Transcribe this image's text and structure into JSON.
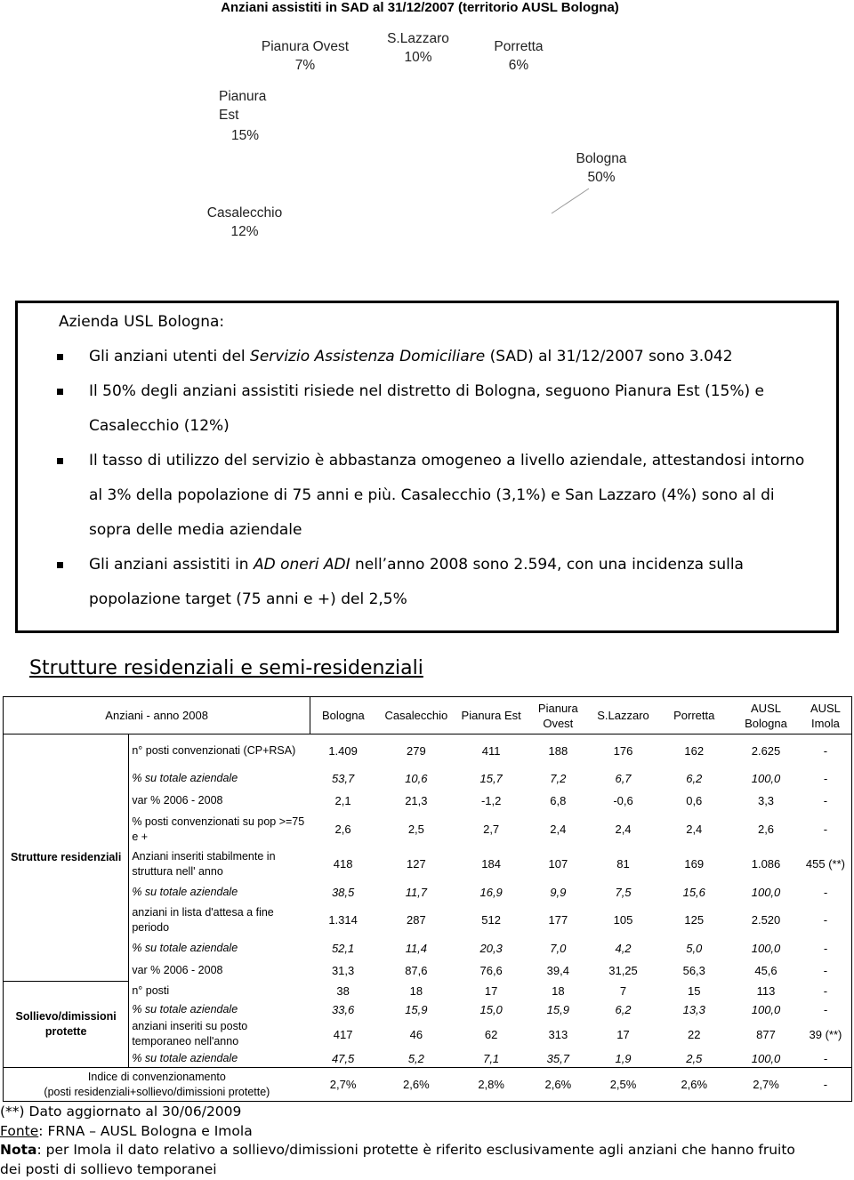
{
  "chart_data": {
    "type": "pie",
    "title": "Anziani assistiti in SAD al 31/12/2007 (territorio AUSL Bologna)",
    "categories": [
      "Porretta",
      "Bologna",
      "Casalecchio",
      "Pianura Est",
      "Pianura Ovest",
      "S.Lazzaro"
    ],
    "values": [
      6,
      50,
      12,
      15,
      7,
      10
    ],
    "value_labels": [
      "6%",
      "50%",
      "12%",
      "15%",
      "7%",
      "10%"
    ],
    "colors": [
      "#339966",
      "#ff0000",
      "#666699",
      "#ccccff",
      "#ffcc00",
      "#3366ff"
    ]
  },
  "summary": {
    "heading": "Azienda USL Bologna:",
    "bullets": [
      [
        "Gli anziani utenti del ",
        "Servizio Assistenza Domiciliare",
        " (SAD) al 31/12/2007 sono 3.042"
      ],
      [
        "Il 50% degli anziani assistiti risiede nel distretto di Bologna, seguono Pianura Est (15%) e Casalecchio (12%)"
      ],
      [
        "Il tasso di utilizzo del servizio è abbastanza omogeneo a livello aziendale, attestandosi intorno al 3% della popolazione di 75 anni e più. Casalecchio (3,1%) e San Lazzaro (4%) sono al di sopra delle media aziendale"
      ],
      [
        "Gli anziani assistiti in ",
        "AD oneri ADI",
        "  nell’anno 2008 sono 2.594, con una incidenza sulla popolazione target (75 anni e +) del 2,5%"
      ]
    ]
  },
  "section_title": "Strutture residenziali e semi-residenziali",
  "table": {
    "corner": "Anziani - anno 2008",
    "columns": [
      "Bologna",
      "Casalecchio",
      "Pianura Est",
      "Pianura Ovest",
      "S.Lazzaro",
      "Porretta",
      "AUSL Bologna",
      "AUSL Imola"
    ],
    "groups": [
      {
        "label": "Strutture residenziali",
        "rows": [
          {
            "label": "n° posti convenzionati (CP+RSA)",
            "values": [
              "1.409",
              "279",
              "411",
              "188",
              "176",
              "162",
              "2.625",
              "-"
            ]
          },
          {
            "label": "% su totale aziendale",
            "italic": true,
            "values": [
              "53,7",
              "10,6",
              "15,7",
              "7,2",
              "6,7",
              "6,2",
              "100,0",
              "-"
            ]
          },
          {
            "label": "var % 2006 - 2008",
            "values": [
              "2,1",
              "21,3",
              "-1,2",
              "6,8",
              "-0,6",
              "0,6",
              "3,3",
              "-"
            ]
          },
          {
            "label": "% posti convenzionati su pop >=75 e +",
            "values": [
              "2,6",
              "2,5",
              "2,7",
              "2,4",
              "2,4",
              "2,4",
              "2,6",
              "-"
            ]
          },
          {
            "label": "Anziani inseriti stabilmente in struttura nell' anno",
            "values": [
              "418",
              "127",
              "184",
              "107",
              "81",
              "169",
              "1.086",
              "455 (**)"
            ]
          },
          {
            "label": "% su totale aziendale",
            "italic": true,
            "values": [
              "38,5",
              "11,7",
              "16,9",
              "9,9",
              "7,5",
              "15,6",
              "100,0",
              "-"
            ]
          },
          {
            "label": "anziani in lista d'attesa a fine periodo",
            "values": [
              "1.314",
              "287",
              "512",
              "177",
              "105",
              "125",
              "2.520",
              "-"
            ]
          },
          {
            "label": "% su totale aziendale",
            "italic": true,
            "values": [
              "52,1",
              "11,4",
              "20,3",
              "7,0",
              "4,2",
              "5,0",
              "100,0",
              "-"
            ]
          },
          {
            "label": "var % 2006 - 2008",
            "values": [
              "31,3",
              "87,6",
              "76,6",
              "39,4",
              "31,25",
              "56,3",
              "45,6",
              "-"
            ]
          }
        ]
      },
      {
        "label": "Sollievo/dimissioni protette",
        "rows": [
          {
            "label": "n° posti",
            "values": [
              "38",
              "18",
              "17",
              "18",
              "7",
              "15",
              "113",
              "-"
            ]
          },
          {
            "label": "% su totale aziendale",
            "italic": true,
            "values": [
              "33,6",
              "15,9",
              "15,0",
              "15,9",
              "6,2",
              "13,3",
              "100,0",
              "-"
            ]
          },
          {
            "label": "anziani inseriti su posto temporaneo nell'anno",
            "values": [
              "417",
              "46",
              "62",
              "313",
              "17",
              "22",
              "877",
              "39 (**)"
            ]
          },
          {
            "label": "% su totale aziendale",
            "italic": true,
            "values": [
              "47,5",
              "5,2",
              "7,1",
              "35,7",
              "1,9",
              "2,5",
              "100,0",
              "-"
            ]
          }
        ]
      }
    ],
    "footer": {
      "label": [
        "Indice di convenzionamento",
        "(posti residenziali+sollievo/dimissioni protette)"
      ],
      "values": [
        "2,7%",
        "2,6%",
        "2,8%",
        "2,6%",
        "2,5%",
        "2,6%",
        "2,7%",
        "-"
      ]
    }
  },
  "notes": {
    "update": "(**) Dato aggiornato al 30/06/2009",
    "source_label": "Fonte",
    "source": ": FRNA – AUSL Bologna e Imola",
    "note_label": "Nota",
    "note": ": per Imola il dato relativo a sollievo/dimissioni protette è riferito esclusivamente agli anziani che hanno fruito dei posti di sollievo temporanei"
  }
}
